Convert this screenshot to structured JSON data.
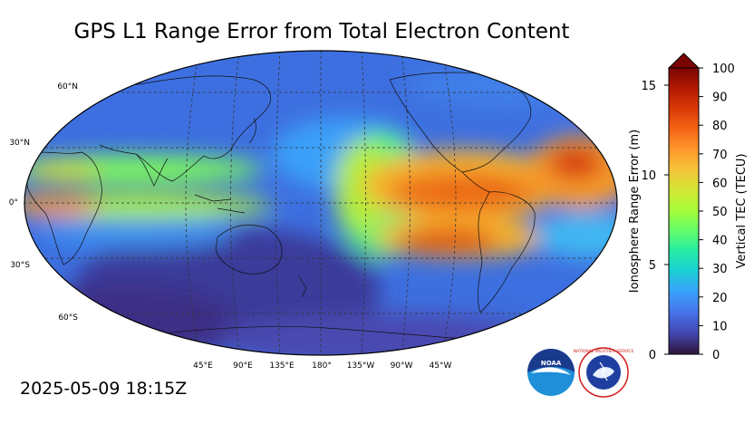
{
  "title": "GPS L1 Range Error from Total Electron Content",
  "timestamp": "2025-05-09 18:15Z",
  "map": {
    "lat_labels": [
      "60°N",
      "30°N",
      "0°",
      "30°S",
      "60°S"
    ],
    "lon_labels": [
      "45°E",
      "90°E",
      "135°E",
      "180°",
      "135°W",
      "90°W",
      "45°W"
    ]
  },
  "colorbar": {
    "left_label": "Ionosphere Range Error (m)",
    "right_label": "Vertical TEC (TECU)",
    "left_ticks": [
      "0",
      "5",
      "10",
      "15"
    ],
    "right_ticks": [
      "0",
      "10",
      "20",
      "30",
      "40",
      "50",
      "60",
      "70",
      "80",
      "90",
      "100"
    ],
    "colors": [
      "#30123b",
      "#4145ab",
      "#4675ed",
      "#39a2fc",
      "#1bcfd4",
      "#24eca6",
      "#61fc6c",
      "#a4fc3b",
      "#d1e834",
      "#f3c63a",
      "#fe9b2d",
      "#f36315",
      "#d93806",
      "#b11901",
      "#7a0402"
    ]
  },
  "logos": {
    "noaa_text": "NOAA",
    "nws_ring_text": "NATIONAL WEATHER SERVICE"
  }
}
